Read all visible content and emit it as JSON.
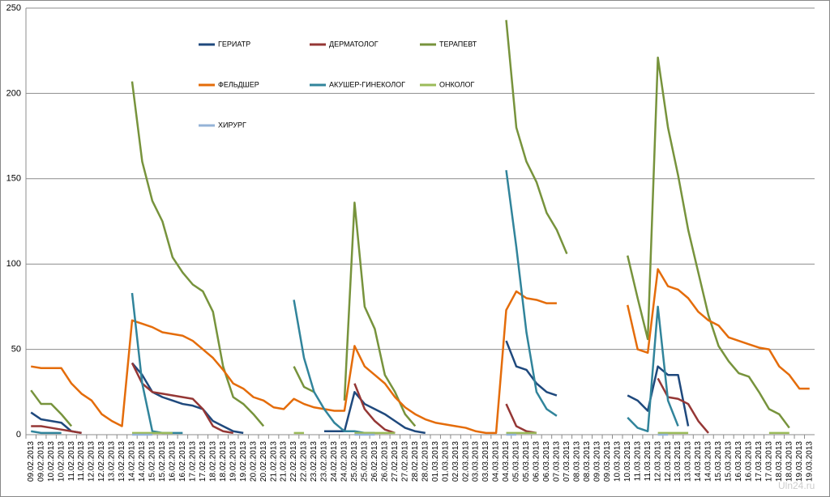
{
  "chart_data": {
    "type": "line",
    "watermark": "Uln24.ru",
    "categories": [
      "09.02.2013",
      "09.02.2013",
      "10.02.2013",
      "10.02.2013",
      "11.02.2013",
      "11.02.2013",
      "12.02.2013",
      "12.02.2013",
      "13.02.2013",
      "13.02.2013",
      "14.02.2013",
      "14.02.2013",
      "15.02.2013",
      "15.02.2013",
      "16.02.2013",
      "16.02.2013",
      "17.02.2013",
      "17.02.2013",
      "18.02.2013",
      "18.02.2013",
      "19.02.2013",
      "19.02.2013",
      "20.02.2013",
      "20.02.2013",
      "21.02.2013",
      "21.02.2013",
      "22.02.2013",
      "22.02.2013",
      "23.02.2013",
      "23.02.2013",
      "24.02.2013",
      "24.02.2013",
      "25.02.2013",
      "25.02.2013",
      "26.02.2013",
      "26.02.2013",
      "27.02.2013",
      "27.02.2013",
      "28.02.2013",
      "28.02.2013",
      "01.03.2013",
      "01.03.2013",
      "02.03.2013",
      "02.03.2013",
      "03.03.2013",
      "03.03.2013",
      "04.03.2013",
      "04.03.2013",
      "05.03.2013",
      "05.03.2013",
      "06.03.2013",
      "06.03.2013",
      "07.03.2013",
      "07.03.2013",
      "08.03.2013",
      "08.03.2013",
      "09.03.2013",
      "09.03.2013",
      "10.03.2013",
      "10.03.2013",
      "11.03.2013",
      "11.03.2013",
      "12.03.2013",
      "12.03.2013",
      "13.03.2013",
      "13.03.2013",
      "14.03.2013",
      "14.03.2013",
      "15.03.2013",
      "15.03.2013",
      "16.03.2013",
      "16.03.2013",
      "17.03.2013",
      "17.03.2013",
      "18.03.2013",
      "18.03.2013",
      "19.03.2013",
      "19.03.2013"
    ],
    "series": [
      {
        "name": "ГЕРИАТР",
        "color": "#1f497d",
        "values": [
          13,
          9,
          8,
          7,
          2,
          1,
          null,
          null,
          null,
          null,
          42,
          35,
          25,
          22,
          20,
          18,
          17,
          15,
          8,
          5,
          2,
          1,
          null,
          null,
          null,
          null,
          null,
          null,
          null,
          2,
          2,
          2,
          25,
          18,
          15,
          12,
          8,
          4,
          2,
          1,
          null,
          null,
          null,
          null,
          null,
          null,
          null,
          55,
          40,
          38,
          30,
          25,
          23,
          null,
          null,
          null,
          null,
          null,
          null,
          23,
          20,
          14,
          40,
          35,
          35,
          5,
          null,
          null,
          null,
          null,
          null,
          null,
          null,
          null,
          null,
          null,
          null,
          null
        ]
      },
      {
        "name": "ДЕРМАТОЛОГ",
        "color": "#953735",
        "values": [
          5,
          5,
          4,
          3,
          2,
          1,
          null,
          null,
          null,
          null,
          42,
          30,
          25,
          24,
          23,
          22,
          21,
          15,
          5,
          2,
          1,
          null,
          null,
          null,
          null,
          null,
          null,
          null,
          null,
          null,
          null,
          null,
          30,
          15,
          8,
          3,
          1,
          null,
          null,
          null,
          null,
          null,
          null,
          null,
          null,
          null,
          null,
          18,
          5,
          2,
          1,
          null,
          null,
          null,
          null,
          null,
          null,
          null,
          null,
          null,
          null,
          null,
          33,
          22,
          21,
          18,
          8,
          1,
          null,
          null,
          null,
          null,
          null,
          null,
          null,
          null,
          null,
          null
        ]
      },
      {
        "name": "ТЕРАПЕВТ",
        "color": "#77933c",
        "values": [
          26,
          18,
          18,
          12,
          5,
          null,
          null,
          null,
          null,
          null,
          207,
          160,
          137,
          125,
          104,
          95,
          88,
          84,
          72,
          40,
          22,
          18,
          12,
          5,
          null,
          null,
          40,
          28,
          25,
          null,
          null,
          20,
          136,
          75,
          62,
          35,
          25,
          12,
          5,
          null,
          null,
          null,
          null,
          null,
          null,
          null,
          null,
          243,
          180,
          160,
          148,
          130,
          120,
          106,
          null,
          null,
          null,
          null,
          null,
          105,
          80,
          56,
          221,
          180,
          152,
          120,
          95,
          70,
          52,
          43,
          36,
          34,
          25,
          15,
          12,
          4,
          null,
          null
        ]
      },
      {
        "name": "ФЕЛЬДШЕР",
        "color": "#e46c0a",
        "values": [
          40,
          39,
          39,
          39,
          30,
          24,
          20,
          12,
          8,
          5,
          67,
          65,
          63,
          60,
          59,
          58,
          55,
          50,
          45,
          38,
          30,
          27,
          22,
          20,
          16,
          15,
          21,
          18,
          16,
          15,
          14,
          14,
          52,
          40,
          35,
          30,
          22,
          16,
          12,
          9,
          7,
          6,
          5,
          4,
          2,
          1,
          1,
          73,
          84,
          80,
          79,
          77,
          77,
          null,
          null,
          null,
          null,
          null,
          null,
          76,
          50,
          48,
          97,
          87,
          85,
          80,
          72,
          67,
          64,
          57,
          55,
          53,
          51,
          50,
          40,
          35,
          27,
          27
        ]
      },
      {
        "name": "АКУШЕР-ГИНЕКОЛОГ",
        "color": "#31849b",
        "values": [
          2,
          1,
          1,
          1,
          null,
          null,
          null,
          null,
          null,
          null,
          83,
          30,
          2,
          1,
          1,
          1,
          null,
          null,
          null,
          null,
          null,
          null,
          null,
          null,
          null,
          null,
          79,
          45,
          25,
          15,
          7,
          2,
          2,
          1,
          1,
          null,
          null,
          null,
          null,
          null,
          null,
          null,
          null,
          null,
          null,
          null,
          null,
          155,
          110,
          60,
          25,
          15,
          11,
          null,
          null,
          null,
          null,
          null,
          null,
          10,
          4,
          2,
          75,
          20,
          5,
          null,
          null,
          null,
          null,
          null,
          null,
          null,
          null,
          null,
          null,
          null,
          null,
          null
        ]
      },
      {
        "name": "ОНКОЛОГ",
        "color": "#9bbb59",
        "values": [
          null,
          null,
          null,
          null,
          null,
          null,
          null,
          null,
          null,
          null,
          1,
          1,
          1,
          1,
          1,
          null,
          null,
          null,
          null,
          null,
          null,
          null,
          null,
          null,
          null,
          null,
          1,
          1,
          null,
          null,
          null,
          null,
          1,
          1,
          1,
          1,
          1,
          null,
          null,
          null,
          null,
          null,
          null,
          null,
          null,
          null,
          null,
          1,
          1,
          1,
          1,
          null,
          null,
          null,
          null,
          null,
          null,
          null,
          null,
          null,
          null,
          null,
          1,
          1,
          1,
          1,
          null,
          null,
          null,
          null,
          null,
          null,
          null,
          1,
          1,
          1,
          null,
          null
        ]
      },
      {
        "name": "ХИРУРГ",
        "color": "#95b3d7",
        "values": [
          null,
          null,
          null,
          null,
          null,
          null,
          null,
          null,
          null,
          null,
          0,
          0,
          0,
          null,
          null,
          null,
          null,
          null,
          null,
          null,
          null,
          null,
          null,
          null,
          null,
          null,
          null,
          null,
          null,
          null,
          null,
          null,
          0,
          0,
          0,
          null,
          null,
          null,
          null,
          null,
          null,
          null,
          null,
          null,
          null,
          null,
          null,
          0,
          0,
          null,
          null,
          null,
          null,
          null,
          null,
          null,
          null,
          null,
          null,
          null,
          null,
          null,
          0,
          0,
          null,
          null,
          null,
          null,
          null,
          null,
          null,
          null,
          null,
          null,
          null,
          null,
          null,
          null
        ]
      }
    ],
    "ylim": [
      0,
      250
    ],
    "yticks": [
      0,
      50,
      100,
      150,
      200,
      250
    ],
    "grid": true,
    "legend": "top"
  }
}
